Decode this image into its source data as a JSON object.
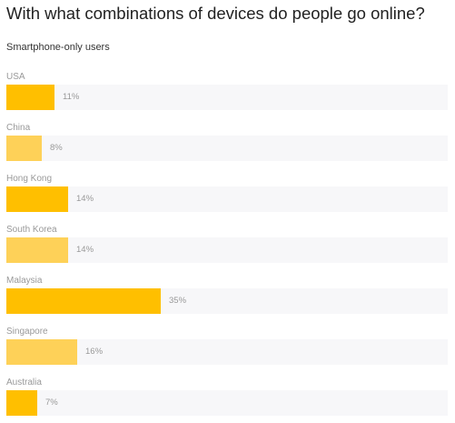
{
  "chart_data": {
    "type": "bar",
    "orientation": "horizontal",
    "title": "With what combinations of devices do people go online?",
    "subtitle": "Smartphone-only users",
    "categories": [
      "USA",
      "China",
      "Hong Kong",
      "South Korea",
      "Malaysia",
      "Singapore",
      "Australia"
    ],
    "values": [
      11,
      8,
      14,
      14,
      35,
      16,
      7
    ],
    "value_labels": [
      "11%",
      "8%",
      "14%",
      "14%",
      "35%",
      "16%",
      "7%"
    ],
    "unit": "%",
    "xlim": [
      0,
      100
    ],
    "grid": false,
    "legend": "none",
    "colors": {
      "bar_primary": "#ffbf00",
      "bar_secondary": "#fed158",
      "track": "#f7f7f9",
      "label": "#999999",
      "title": "#222222"
    }
  }
}
